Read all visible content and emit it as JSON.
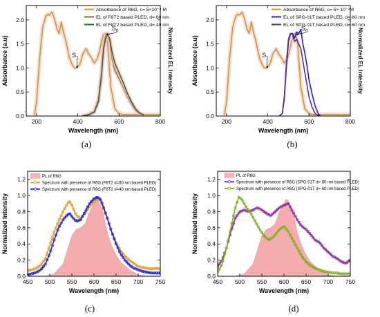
{
  "panels": [
    {
      "id": "a",
      "caption": "(a)",
      "chart_data": {
        "type": "line",
        "xlabel": "Wavelength (nm)",
        "ylabel": "Absorbance (a.u)",
        "ylabel_right": "Normalized EL Intensity",
        "xlim": [
          150,
          800
        ],
        "ylim": [
          0,
          2.3
        ],
        "xticks": [
          200,
          400,
          600,
          800
        ],
        "yticks": [
          0.0,
          0.5,
          1.0,
          1.5,
          2.0
        ],
        "ytick_labels": [
          "0.0",
          "0.5",
          "1.0",
          "1.5",
          "2.0"
        ],
        "legend_position": "top-right",
        "annotations": [
          {
            "text": "S",
            "sub": "1",
            "x": 385,
            "y": 1.22,
            "ax": 397,
            "ay": 1.02
          },
          {
            "text": "S",
            "sub": "0",
            "x": 578,
            "y": 1.78,
            "ax": 543,
            "ay": 1.7
          }
        ],
        "series": [
          {
            "name": "Absorbance of R6G, c= 5×10⁻⁴ M",
            "color": "#c8a020",
            "band": true,
            "x": [
              190,
              200,
              215,
              230,
              245,
              255,
              262,
              275,
              285,
              300,
              310,
              320,
              333,
              340,
              350,
              360,
              375,
              385,
              395,
              410,
              425,
              440,
              452,
              465,
              480,
              495,
              505,
              515,
              525,
              535,
              545,
              560,
              580,
              600,
              620,
              640,
              660,
              680,
              700,
              720,
              740,
              760,
              780,
              800
            ],
            "y": [
              0.02,
              0.3,
              1.2,
              1.85,
              2.08,
              2.12,
              2.1,
              2.16,
              2.05,
              1.8,
              1.72,
              1.95,
              1.7,
              1.6,
              1.4,
              1.2,
              1.05,
              1.0,
              1.0,
              1.08,
              1.3,
              1.4,
              1.3,
              1.22,
              1.1,
              1.2,
              1.35,
              1.55,
              1.7,
              1.72,
              1.5,
              0.6,
              0.15,
              0.05,
              0.03,
              0.03,
              0.03,
              0.03,
              0.03,
              0.03,
              0.03,
              0.03,
              0.03,
              0.03
            ]
          },
          {
            "name": "EL of F8T2 based PLED, d= 60 nm",
            "color": "#8a6a20",
            "band": true,
            "x": [
              420,
              450,
              480,
              500,
              515,
              525,
              535,
              545,
              555,
              565,
              580,
              600,
              620,
              640,
              660,
              680,
              700,
              720
            ],
            "y": [
              0.0,
              0.03,
              0.1,
              0.35,
              0.9,
              1.45,
              1.68,
              1.72,
              1.55,
              1.2,
              0.95,
              0.78,
              0.6,
              0.4,
              0.25,
              0.12,
              0.05,
              0.02
            ]
          },
          {
            "name": "EL of F8T2 based PLED, d= 40 nm",
            "color": "#2e6e1e",
            "band": true,
            "x": [
              420,
              450,
              480,
              500,
              515,
              525,
              535,
              545,
              555,
              565,
              580,
              600,
              620,
              640,
              660,
              680,
              700,
              720
            ],
            "y": [
              0.0,
              0.02,
              0.08,
              0.3,
              0.85,
              1.4,
              1.62,
              1.7,
              1.6,
              1.35,
              1.1,
              0.9,
              0.7,
              0.48,
              0.3,
              0.15,
              0.06,
              0.02
            ]
          }
        ]
      }
    },
    {
      "id": "b",
      "caption": "(b)",
      "chart_data": {
        "type": "line",
        "xlabel": "Wavelength (nm)",
        "ylabel": "Absorbance (a.u)",
        "ylabel_right": "Normalized EL Intensity",
        "xlim": [
          150,
          800
        ],
        "ylim": [
          0,
          2.3
        ],
        "xticks": [
          200,
          400,
          600,
          800
        ],
        "yticks": [
          0.0,
          0.5,
          1.0,
          1.5,
          2.0
        ],
        "ytick_labels": [
          "0.0",
          "0.5",
          "1.0",
          "1.5",
          "2.0"
        ],
        "legend_position": "top-right",
        "annotations": [
          {
            "text": "S",
            "sub": "1",
            "x": 385,
            "y": 1.22,
            "ax": 397,
            "ay": 1.02
          },
          {
            "text": "S",
            "sub": "0",
            "x": 575,
            "y": 1.78,
            "ax": 543,
            "ay": 1.7
          }
        ],
        "series": [
          {
            "name": "Absorbance of R6G, c= 5× 10⁻⁴M",
            "color": "#c8a020",
            "band": true,
            "x": [
              190,
              200,
              215,
              230,
              245,
              255,
              262,
              275,
              285,
              300,
              310,
              320,
              333,
              340,
              350,
              360,
              375,
              385,
              395,
              410,
              425,
              440,
              452,
              465,
              480,
              495,
              505,
              515,
              525,
              535,
              545,
              560,
              580,
              600,
              620,
              640,
              660,
              680,
              700,
              720,
              740,
              760,
              780,
              800
            ],
            "y": [
              0.02,
              0.3,
              1.2,
              1.85,
              2.08,
              2.12,
              2.1,
              2.16,
              2.05,
              1.8,
              1.72,
              1.95,
              1.7,
              1.6,
              1.4,
              1.2,
              1.05,
              1.0,
              1.0,
              1.08,
              1.3,
              1.4,
              1.3,
              1.22,
              1.1,
              1.2,
              1.35,
              1.55,
              1.7,
              1.72,
              1.5,
              0.6,
              0.15,
              0.05,
              0.03,
              0.03,
              0.03,
              0.03,
              0.03,
              0.03,
              0.03,
              0.03,
              0.03,
              0.03
            ]
          },
          {
            "name": "EL of SPG-01T based PLED, d= 80 nm",
            "color": "#1a1ae0",
            "band": false,
            "x": [
              455,
              470,
              480,
              490,
              500,
              510,
              520,
              530,
              540,
              550,
              560,
              570,
              580,
              590,
              600,
              615,
              630,
              645,
              655
            ],
            "y": [
              0.0,
              0.05,
              0.35,
              1.0,
              1.55,
              1.7,
              1.72,
              1.62,
              1.75,
              1.72,
              1.8,
              1.5,
              1.3,
              1.05,
              0.75,
              0.45,
              0.2,
              0.05,
              0.0
            ]
          },
          {
            "name": "EL of SPG-01T based PLED, d= 60 nm",
            "color": "#5a2a8c",
            "band": false,
            "x": [
              455,
              470,
              480,
              490,
              500,
              510,
              520,
              530,
              540,
              550,
              560,
              570,
              580,
              590,
              600,
              615,
              630,
              645,
              655
            ],
            "y": [
              0.0,
              0.05,
              0.4,
              1.1,
              1.6,
              1.72,
              1.7,
              1.55,
              1.6,
              1.5,
              1.4,
              1.15,
              0.9,
              0.65,
              0.4,
              0.18,
              0.05,
              0.01,
              0.0
            ]
          }
        ]
      }
    },
    {
      "id": "c",
      "caption": "(c)",
      "chart_data": {
        "type": "line",
        "xlabel": "Wavelength (nm)",
        "ylabel": "Normalized Intensity",
        "xlim": [
          450,
          750
        ],
        "ylim": [
          0,
          1.3
        ],
        "xticks": [
          450,
          500,
          550,
          600,
          650,
          700,
          750
        ],
        "yticks": [
          0.0,
          0.2,
          0.4,
          0.6,
          0.8,
          1.0,
          1.2
        ],
        "ytick_labels": [
          "0.0",
          "0.2",
          "0.4",
          "0.6",
          "0.8",
          "1.0",
          "1.2"
        ],
        "legend_position": "top-left",
        "series": [
          {
            "name": "PL of R6G",
            "color": "#f08080",
            "fill": true,
            "x": [
              490,
              510,
              530,
              550,
              560,
              570,
              580,
              590,
              600,
              605,
              610,
              620,
              630,
              640,
              650,
              660,
              680,
              700,
              720
            ],
            "y": [
              0.0,
              0.03,
              0.15,
              0.5,
              0.58,
              0.6,
              0.65,
              0.8,
              0.9,
              0.96,
              0.93,
              0.8,
              0.55,
              0.38,
              0.26,
              0.18,
              0.08,
              0.02,
              0.0
            ]
          },
          {
            "name": "Spectrum with presence of R6G (F8T2 d=60 nm based PLED)",
            "color": "#e0a020",
            "marker": true,
            "x": [
              450,
              460,
              470,
              480,
              490,
              500,
              510,
              520,
              530,
              540,
              545,
              550,
              560,
              570,
              580,
              590,
              600,
              608,
              615,
              620,
              630,
              640,
              650,
              660,
              670,
              680,
              690,
              700,
              710,
              720,
              730,
              740,
              750
            ],
            "y": [
              0.07,
              0.08,
              0.1,
              0.14,
              0.22,
              0.38,
              0.55,
              0.68,
              0.8,
              0.9,
              0.93,
              0.88,
              0.75,
              0.72,
              0.78,
              0.86,
              0.92,
              0.96,
              0.93,
              0.86,
              0.72,
              0.55,
              0.42,
              0.32,
              0.25,
              0.2,
              0.16,
              0.12,
              0.11,
              0.1,
              0.09,
              0.1,
              0.09
            ]
          },
          {
            "name": "Spectrum with presence of R6G (F8T2 d=40 nm based PLED)",
            "color": "#2020e0",
            "marker": true,
            "x": [
              450,
              460,
              470,
              480,
              490,
              500,
              510,
              520,
              530,
              540,
              545,
              550,
              560,
              570,
              580,
              590,
              600,
              608,
              615,
              620,
              630,
              640,
              650,
              660,
              670,
              680,
              690,
              700,
              710,
              720,
              730,
              740,
              750
            ],
            "y": [
              0.02,
              0.03,
              0.05,
              0.08,
              0.15,
              0.28,
              0.45,
              0.6,
              0.7,
              0.76,
              0.78,
              0.74,
              0.68,
              0.7,
              0.8,
              0.9,
              0.96,
              0.98,
              0.95,
              0.88,
              0.72,
              0.55,
              0.4,
              0.28,
              0.2,
              0.14,
              0.1,
              0.08,
              0.06,
              0.05,
              0.04,
              0.04,
              0.04
            ]
          }
        ]
      }
    },
    {
      "id": "d",
      "caption": "(d)",
      "chart_data": {
        "type": "line",
        "xlabel": "Wavelength (nm)",
        "ylabel": "Normalized Intensity",
        "xlim": [
          450,
          750
        ],
        "ylim": [
          0,
          1.3
        ],
        "xticks": [
          450,
          500,
          550,
          600,
          650,
          700,
          750
        ],
        "yticks": [
          0.0,
          0.2,
          0.4,
          0.6,
          0.8,
          1.0,
          1.2
        ],
        "ytick_labels": [
          "0.0",
          "0.2",
          "0.4",
          "0.6",
          "0.8",
          "1.0",
          "1.2"
        ],
        "legend_position": "top-left",
        "series": [
          {
            "name": "PL of R6G",
            "color": "#f08080",
            "fill": true,
            "x": [
              490,
              510,
              530,
              550,
              560,
              570,
              580,
              590,
              600,
              605,
              610,
              620,
              630,
              640,
              650,
              660,
              680,
              700,
              720
            ],
            "y": [
              0.0,
              0.03,
              0.15,
              0.5,
              0.58,
              0.6,
              0.65,
              0.8,
              0.9,
              0.96,
              0.93,
              0.8,
              0.55,
              0.38,
              0.26,
              0.18,
              0.08,
              0.02,
              0.0
            ]
          },
          {
            "name": "Spectrum with presence of R6G (SPG-01T d= 80 nm based PLED)",
            "color": "#8a2a9c",
            "marker": true,
            "x": [
              450,
              460,
              470,
              480,
              490,
              500,
              510,
              520,
              530,
              540,
              550,
              560,
              570,
              580,
              590,
              600,
              610,
              620,
              630,
              640,
              650,
              660,
              670,
              680,
              690,
              700,
              710,
              720,
              730,
              740,
              750
            ],
            "y": [
              0.12,
              0.2,
              0.35,
              0.55,
              0.72,
              0.8,
              0.82,
              0.8,
              0.82,
              0.85,
              0.82,
              0.78,
              0.75,
              0.8,
              0.85,
              0.88,
              0.9,
              0.8,
              0.7,
              0.62,
              0.58,
              0.52,
              0.45,
              0.42,
              0.35,
              0.3,
              0.25,
              0.22,
              0.18,
              0.16,
              0.2
            ]
          },
          {
            "name": "Spectrum with presence of R6G (SPG-01T d= 60 nm based PLED)",
            "color": "#7ab020",
            "marker": true,
            "x": [
              450,
              460,
              470,
              480,
              490,
              498,
              505,
              515,
              525,
              535,
              545,
              555,
              565,
              575,
              590,
              600,
              610,
              620,
              630,
              640,
              650,
              660,
              670,
              680,
              690,
              700,
              710,
              720,
              730,
              740,
              750
            ],
            "y": [
              0.05,
              0.15,
              0.35,
              0.6,
              0.85,
              0.98,
              0.95,
              0.85,
              0.78,
              0.68,
              0.58,
              0.5,
              0.45,
              0.48,
              0.58,
              0.62,
              0.55,
              0.45,
              0.35,
              0.25,
              0.18,
              0.13,
              0.1,
              0.08,
              0.06,
              0.05,
              0.04,
              0.04,
              0.03,
              0.03,
              0.03
            ]
          }
        ]
      }
    }
  ]
}
